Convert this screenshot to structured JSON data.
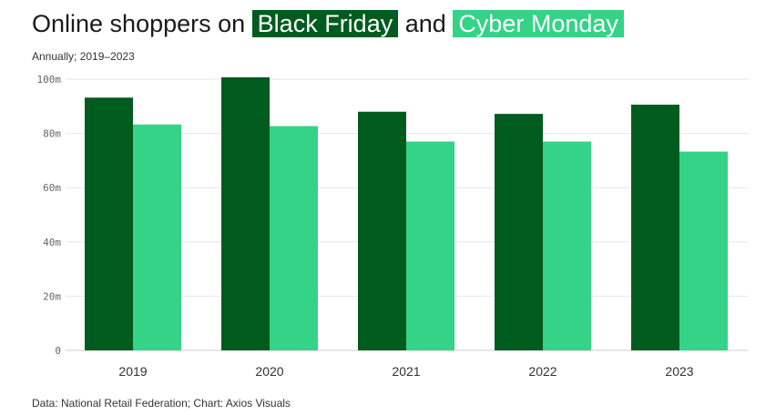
{
  "title": {
    "prefix": "Online shoppers on",
    "series1": "Black Friday",
    "connector": "and",
    "series2": "Cyber Monday"
  },
  "subtitle": "Annually; 2019–2023",
  "footer": "Data: National Retail Federation; Chart: Axios Visuals",
  "colors": {
    "black_friday": "#005b1e",
    "cyber_monday": "#34d387",
    "grid": "#e6e6e6",
    "axis": "#cccccc"
  },
  "chart_data": {
    "type": "bar",
    "categories": [
      "2019",
      "2020",
      "2021",
      "2022",
      "2023"
    ],
    "series": [
      {
        "name": "Black Friday",
        "values": [
          93.2,
          100.7,
          88.0,
          87.2,
          90.6
        ],
        "color": "#005b1e"
      },
      {
        "name": "Cyber Monday",
        "values": [
          83.3,
          82.7,
          77.0,
          77.0,
          73.3
        ],
        "color": "#34d387"
      }
    ],
    "yticks": [
      0,
      20,
      40,
      60,
      80,
      100
    ],
    "ytick_labels": [
      "0",
      "20m",
      "40m",
      "60m",
      "80m",
      "100m"
    ],
    "ylim": [
      0,
      100
    ],
    "grid": true,
    "legend": "title"
  }
}
